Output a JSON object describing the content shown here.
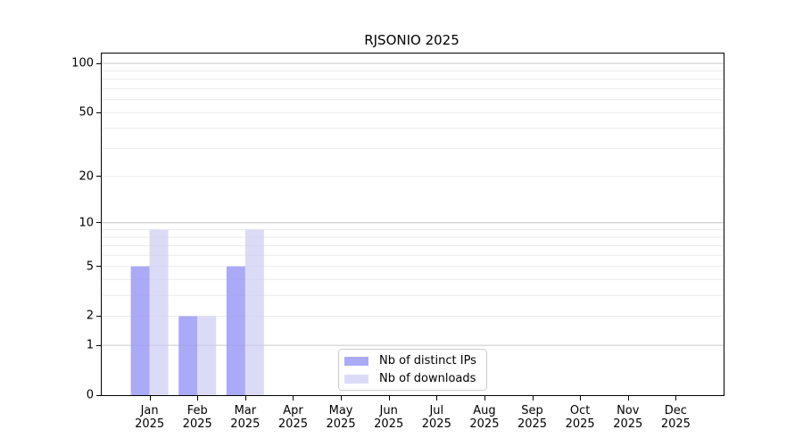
{
  "chart_data": {
    "type": "bar",
    "title": "RJSONIO 2025",
    "categories": [
      "Jan",
      "Feb",
      "Mar",
      "Apr",
      "May",
      "Jun",
      "Jul",
      "Aug",
      "Sep",
      "Oct",
      "Nov",
      "Dec"
    ],
    "year": "2025",
    "series": [
      {
        "name": "Nb of distinct IPs",
        "color": "#9b9bf6",
        "opacity": 0.85,
        "values": [
          5,
          2,
          5,
          0,
          0,
          0,
          0,
          0,
          0,
          0,
          0,
          0
        ]
      },
      {
        "name": "Nb of downloads",
        "color": "#ccccf5",
        "opacity": 0.7,
        "values": [
          9,
          2,
          9,
          0,
          0,
          0,
          0,
          0,
          0,
          0,
          0,
          0
        ]
      }
    ],
    "y_scale": "log1p",
    "ylim": [
      0,
      115
    ],
    "y_ticks": [
      0,
      1,
      2,
      5,
      10,
      20,
      50,
      100
    ],
    "y_major_gridlines": [
      1,
      10,
      100
    ],
    "y_minor_gridlines": [
      2,
      3,
      4,
      5,
      6,
      7,
      8,
      9,
      20,
      30,
      40,
      50,
      60,
      70,
      80,
      90
    ],
    "grid": "horizontal-only",
    "legend_position": "lower-center",
    "xlabel": "",
    "ylabel": ""
  },
  "colors": {
    "background": "#ffffff",
    "axis": "#000000",
    "major_grid": "#c6c6c6",
    "minor_grid": "#ebebeb",
    "legend_border": "#cccccc",
    "bar_distinct_ips_rendered": "#aaaaf7",
    "bar_downloads_rendered": "#dbdbf8"
  }
}
